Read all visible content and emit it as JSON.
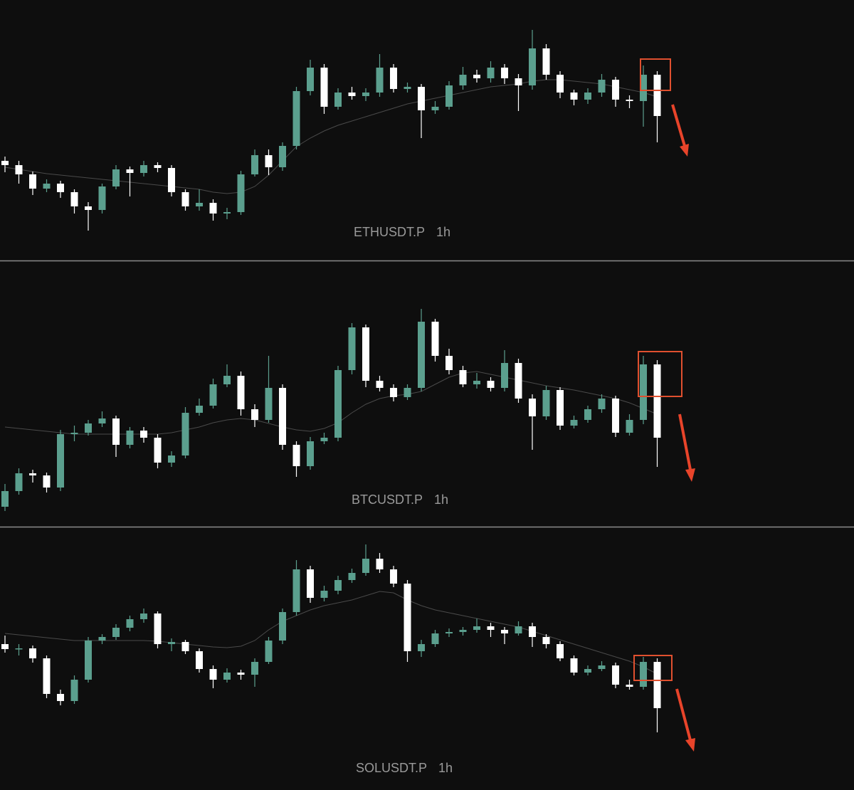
{
  "chart_data": [
    {
      "type": "candlestick",
      "symbol": "ETHUSDT.P",
      "interval": "1h",
      "up_color": "#5b9f8e",
      "down_color": "#ffffff",
      "ma_color": "#4a4a4a",
      "ylim": [
        0,
        366
      ],
      "candles": [
        [
          140,
          146,
          124,
          134
        ],
        [
          134,
          140,
          108,
          121
        ],
        [
          121,
          125,
          92,
          101
        ],
        [
          101,
          114,
          96,
          108
        ],
        [
          108,
          112,
          88,
          96
        ],
        [
          96,
          100,
          66,
          76
        ],
        [
          76,
          82,
          42,
          71
        ],
        [
          71,
          108,
          66,
          104
        ],
        [
          104,
          134,
          100,
          128
        ],
        [
          128,
          132,
          90,
          123
        ],
        [
          123,
          140,
          118,
          134
        ],
        [
          134,
          138,
          124,
          130
        ],
        [
          130,
          134,
          90,
          96
        ],
        [
          96,
          100,
          70,
          76
        ],
        [
          76,
          100,
          70,
          81
        ],
        [
          81,
          86,
          56,
          66
        ],
        [
          66,
          74,
          58,
          68
        ],
        [
          68,
          126,
          64,
          121
        ],
        [
          121,
          156,
          118,
          148
        ],
        [
          148,
          156,
          120,
          131
        ],
        [
          131,
          166,
          126,
          161
        ],
        [
          161,
          244,
          156,
          238
        ],
        [
          238,
          282,
          232,
          271
        ],
        [
          271,
          276,
          206,
          216
        ],
        [
          216,
          242,
          212,
          236
        ],
        [
          236,
          244,
          226,
          231
        ],
        [
          231,
          242,
          224,
          236
        ],
        [
          236,
          290,
          230,
          271
        ],
        [
          271,
          276,
          236,
          241
        ],
        [
          241,
          250,
          236,
          244
        ],
        [
          244,
          248,
          172,
          211
        ],
        [
          211,
          224,
          206,
          216
        ],
        [
          216,
          252,
          212,
          246
        ],
        [
          246,
          272,
          240,
          261
        ],
        [
          261,
          268,
          250,
          256
        ],
        [
          256,
          280,
          250,
          271
        ],
        [
          271,
          276,
          248,
          256
        ],
        [
          256,
          262,
          210,
          246
        ],
        [
          246,
          324,
          240,
          298
        ],
        [
          298,
          304,
          254,
          261
        ],
        [
          261,
          266,
          228,
          236
        ],
        [
          236,
          240,
          218,
          226
        ],
        [
          226,
          242,
          220,
          236
        ],
        [
          236,
          262,
          230,
          254
        ],
        [
          254,
          258,
          216,
          226
        ],
        [
          226,
          232,
          214,
          224
        ],
        [
          224,
          274,
          188,
          261
        ],
        [
          261,
          266,
          166,
          203
        ]
      ],
      "ma": [
        131,
        128,
        125,
        122,
        120,
        118,
        116,
        114,
        112,
        110,
        108,
        106,
        104,
        102,
        100,
        96,
        94,
        96,
        104,
        120,
        140,
        160,
        172,
        182,
        190,
        196,
        202,
        208,
        214,
        220,
        224,
        228,
        232,
        236,
        240,
        244,
        246,
        248,
        252,
        254,
        254,
        252,
        250,
        248,
        244,
        240,
        236,
        230
      ]
    },
    {
      "type": "candlestick",
      "symbol": "BTCUSDT.P",
      "interval": "1h",
      "up_color": "#5b9f8e",
      "down_color": "#ffffff",
      "ma_color": "#4a4a4a",
      "ylim": [
        0,
        372
      ],
      "candles": [
        [
          28,
          60,
          22,
          50
        ],
        [
          50,
          82,
          45,
          75
        ],
        [
          75,
          80,
          62,
          72
        ],
        [
          72,
          76,
          48,
          55
        ],
        [
          55,
          136,
          50,
          130
        ],
        [
          130,
          142,
          120,
          132
        ],
        [
          132,
          150,
          128,
          145
        ],
        [
          145,
          162,
          140,
          152
        ],
        [
          152,
          156,
          98,
          115
        ],
        [
          115,
          140,
          110,
          135
        ],
        [
          135,
          140,
          118,
          125
        ],
        [
          125,
          130,
          82,
          90
        ],
        [
          90,
          106,
          84,
          100
        ],
        [
          100,
          168,
          96,
          160
        ],
        [
          160,
          180,
          156,
          170
        ],
        [
          170,
          208,
          166,
          200
        ],
        [
          200,
          228,
          196,
          212
        ],
        [
          212,
          218,
          156,
          165
        ],
        [
          165,
          172,
          140,
          150
        ],
        [
          150,
          240,
          146,
          195
        ],
        [
          195,
          200,
          108,
          115
        ],
        [
          115,
          120,
          70,
          85
        ],
        [
          85,
          126,
          80,
          120
        ],
        [
          120,
          132,
          116,
          125
        ],
        [
          125,
          226,
          120,
          220
        ],
        [
          220,
          286,
          214,
          280
        ],
        [
          280,
          284,
          196,
          205
        ],
        [
          205,
          212,
          190,
          195
        ],
        [
          195,
          200,
          176,
          182
        ],
        [
          182,
          200,
          178,
          195
        ],
        [
          195,
          306,
          190,
          288
        ],
        [
          288,
          292,
          232,
          240
        ],
        [
          240,
          250,
          214,
          220
        ],
        [
          220,
          226,
          196,
          200
        ],
        [
          200,
          216,
          194,
          205
        ],
        [
          205,
          210,
          190,
          195
        ],
        [
          195,
          248,
          190,
          230
        ],
        [
          230,
          236,
          174,
          180
        ],
        [
          180,
          186,
          108,
          155
        ],
        [
          155,
          198,
          150,
          192
        ],
        [
          192,
          196,
          136,
          142
        ],
        [
          142,
          156,
          138,
          150
        ],
        [
          150,
          170,
          146,
          165
        ],
        [
          165,
          186,
          160,
          180
        ],
        [
          180,
          184,
          126,
          132
        ],
        [
          132,
          158,
          128,
          150
        ],
        [
          150,
          240,
          144,
          228
        ],
        [
          228,
          234,
          84,
          125
        ]
      ],
      "ma": [
        140,
        138,
        136,
        134,
        132,
        130,
        130,
        130,
        130,
        130,
        130,
        130,
        132,
        136,
        140,
        146,
        150,
        152,
        150,
        145,
        140,
        136,
        134,
        138,
        146,
        160,
        172,
        180,
        184,
        186,
        190,
        200,
        210,
        216,
        218,
        214,
        210,
        206,
        202,
        198,
        195,
        192,
        188,
        184,
        180,
        174,
        166,
        158
      ]
    },
    {
      "type": "candlestick",
      "symbol": "SOLUSDT.P",
      "interval": "1h",
      "up_color": "#5b9f8e",
      "down_color": "#ffffff",
      "ma_color": "#4a4a4a",
      "ylim": [
        0,
        363
      ],
      "candles": [
        [
          200,
          212,
          188,
          193
        ],
        [
          193,
          200,
          184,
          194
        ],
        [
          194,
          198,
          174,
          180
        ],
        [
          180,
          184,
          124,
          130
        ],
        [
          130,
          136,
          114,
          120
        ],
        [
          120,
          156,
          116,
          150
        ],
        [
          150,
          210,
          146,
          205
        ],
        [
          205,
          214,
          200,
          210
        ],
        [
          210,
          228,
          206,
          223
        ],
        [
          223,
          240,
          218,
          235
        ],
        [
          235,
          250,
          230,
          243
        ],
        [
          243,
          246,
          194,
          200
        ],
        [
          200,
          208,
          190,
          203
        ],
        [
          203,
          206,
          186,
          190
        ],
        [
          190,
          194,
          160,
          165
        ],
        [
          165,
          170,
          138,
          150
        ],
        [
          150,
          166,
          146,
          160
        ],
        [
          160,
          164,
          150,
          157
        ],
        [
          157,
          180,
          140,
          175
        ],
        [
          175,
          210,
          172,
          205
        ],
        [
          205,
          250,
          200,
          245
        ],
        [
          245,
          318,
          240,
          305
        ],
        [
          305,
          310,
          258,
          265
        ],
        [
          265,
          282,
          260,
          275
        ],
        [
          275,
          296,
          270,
          290
        ],
        [
          290,
          306,
          286,
          300
        ],
        [
          300,
          340,
          296,
          320
        ],
        [
          320,
          328,
          300,
          305
        ],
        [
          305,
          310,
          280,
          285
        ],
        [
          285,
          290,
          175,
          190
        ],
        [
          190,
          206,
          182,
          200
        ],
        [
          200,
          220,
          196,
          215
        ],
        [
          215,
          222,
          210,
          217
        ],
        [
          217,
          224,
          212,
          220
        ],
        [
          220,
          236,
          216,
          225
        ],
        [
          225,
          230,
          210,
          220
        ],
        [
          220,
          224,
          200,
          215
        ],
        [
          215,
          232,
          212,
          225
        ],
        [
          225,
          230,
          196,
          210
        ],
        [
          210,
          214,
          194,
          200
        ],
        [
          200,
          204,
          176,
          180
        ],
        [
          180,
          184,
          156,
          160
        ],
        [
          160,
          170,
          156,
          165
        ],
        [
          165,
          176,
          162,
          170
        ],
        [
          170,
          174,
          138,
          143
        ],
        [
          143,
          150,
          136,
          140
        ],
        [
          140,
          182,
          136,
          175
        ],
        [
          175,
          180,
          76,
          110
        ]
      ],
      "ma": [
        215,
        213,
        211,
        209,
        207,
        205,
        205,
        205,
        205,
        205,
        205,
        204,
        202,
        200,
        198,
        196,
        195,
        197,
        205,
        220,
        232,
        240,
        248,
        254,
        258,
        262,
        268,
        274,
        272,
        262,
        254,
        248,
        244,
        240,
        236,
        232,
        228,
        224,
        218,
        212,
        206,
        200,
        194,
        188,
        182,
        176,
        168,
        158
      ]
    }
  ]
}
